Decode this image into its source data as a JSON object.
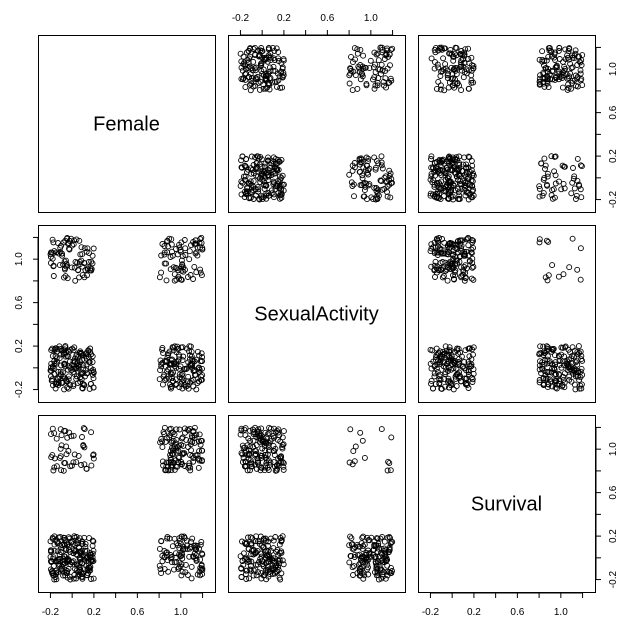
{
  "chart_data": {
    "type": "scatter",
    "variables": [
      "Female",
      "SexualActivity",
      "Survival"
    ],
    "axis": {
      "range": [
        -0.25,
        1.25
      ],
      "ticks": [
        -0.2,
        0.2,
        0.6,
        1.0
      ],
      "tick_labels": [
        "-0.2",
        "0.2",
        "0.6",
        "1.0"
      ]
    },
    "observations": {
      "n": 470,
      "values": [
        0,
        1
      ],
      "jitter_half_width": 0.2,
      "combination_counts": [
        {
          "Female": 0,
          "SexualActivity": 0,
          "Survival": 0,
          "count": 120
        },
        {
          "Female": 0,
          "SexualActivity": 0,
          "Survival": 1,
          "count": 45
        },
        {
          "Female": 0,
          "SexualActivity": 1,
          "Survival": 0,
          "count": 80
        },
        {
          "Female": 0,
          "SexualActivity": 1,
          "Survival": 1,
          "count": 5
        },
        {
          "Female": 1,
          "SexualActivity": 0,
          "Survival": 0,
          "count": 30
        },
        {
          "Female": 1,
          "SexualActivity": 0,
          "Survival": 1,
          "count": 110
        },
        {
          "Female": 1,
          "SexualActivity": 1,
          "Survival": 0,
          "count": 70
        },
        {
          "Female": 1,
          "SexualActivity": 1,
          "Survival": 1,
          "count": 10
        }
      ]
    },
    "grid": false,
    "legend": "none",
    "marker": "open-circle",
    "point_color": "#000000"
  }
}
